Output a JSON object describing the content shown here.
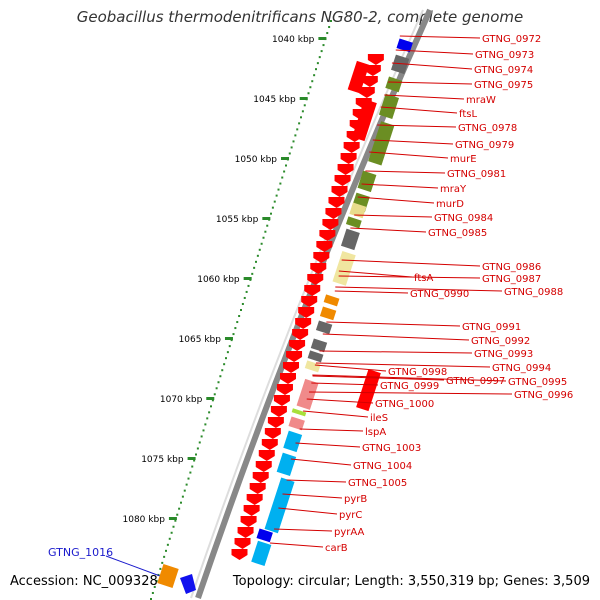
{
  "header": {
    "title": "Geobacillus thermodenitrificans NG80-2, complete genome"
  },
  "footer": {
    "accession": "Accession: NC_009328",
    "topology": "Topology: circular; Length: 3,550,319 bp; Genes: 3,509"
  },
  "scale_labels": [
    "1040 kbp",
    "1045 kbp",
    "1050 kbp",
    "1055 kbp",
    "1060 kbp",
    "1065 kbp",
    "1070 kbp",
    "1075 kbp",
    "1080 kbp"
  ],
  "gene_labels": [
    "GTNG_0972",
    "GTNG_0973",
    "GTNG_0974",
    "GTNG_0975",
    "mraW",
    "ftsL",
    "GTNG_0978",
    "GTNG_0979",
    "murE",
    "GTNG_0981",
    "mraY",
    "murD",
    "GTNG_0984",
    "GTNG_0985",
    "GTNG_0986",
    "GTNG_0987",
    "GTNG_0988",
    "ftsA",
    "GTNG_0990",
    "GTNG_0991",
    "GTNG_0992",
    "GTNG_0993",
    "GTNG_0994",
    "GTNG_0995",
    "GTNG_0996",
    "GTNG_0997",
    "GTNG_0998",
    "GTNG_0999",
    "GTNG_1000",
    "ileS",
    "lspA",
    "GTNG_1003",
    "GTNG_1004",
    "GTNG_1005",
    "pyrB",
    "pyrC",
    "pyrAA",
    "carB"
  ],
  "highlight_label": "GTNG_1016",
  "colors": {
    "backbone": "#888888",
    "ticks": "#2a8a2a",
    "label": "#d40000",
    "highlight": "#1a1acc",
    "arrow": "#ff0000"
  }
}
